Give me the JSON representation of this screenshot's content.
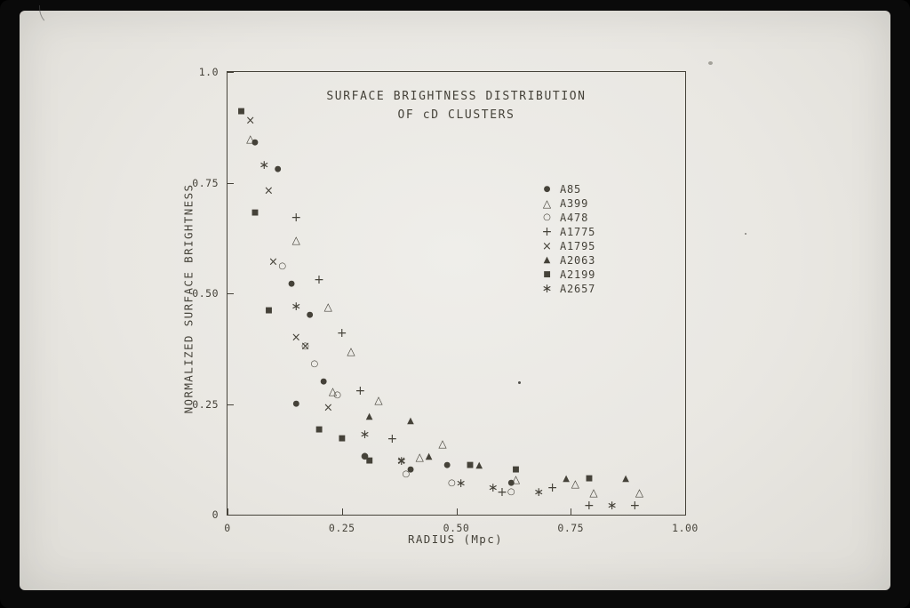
{
  "photo": {
    "frame_color": "#0a0a0a",
    "surface_color": "#e9e7e2",
    "ink_color": "#454239"
  },
  "chart": {
    "title_line1": "SURFACE BRIGHTNESS DISTRIBUTION",
    "title_line2": "OF cD CLUSTERS",
    "xlabel": "RADIUS (Mpc)",
    "ylabel": "NORMALIZED SURFACE BRIGHTNESS"
  },
  "chart_data": {
    "type": "scatter",
    "title": "SURFACE BRIGHTNESS DISTRIBUTION OF cD CLUSTERS",
    "xlabel": "RADIUS (Mpc)",
    "ylabel": "NORMALIZED SURFACE BRIGHTNESS",
    "xlim": [
      0,
      1.0
    ],
    "ylim": [
      0,
      1.0
    ],
    "grid": false,
    "legend_position": "inside-right",
    "x_ticks": [
      {
        "value": 0.0,
        "label": "0"
      },
      {
        "value": 0.25,
        "label": "0.25"
      },
      {
        "value": 0.5,
        "label": "0.50"
      },
      {
        "value": 0.75,
        "label": "0.75"
      },
      {
        "value": 1.0,
        "label": "1.00"
      }
    ],
    "y_ticks": [
      {
        "value": 0.0,
        "label": "0"
      },
      {
        "value": 0.25,
        "label": "0.25"
      },
      {
        "value": 0.5,
        "label": "0.50"
      },
      {
        "value": 0.75,
        "label": "0.75"
      },
      {
        "value": 1.0,
        "label": "1.0"
      }
    ],
    "series": [
      {
        "name": "A85",
        "marker": "filled-circle",
        "glyph": "●",
        "points": [
          [
            0.06,
            0.84
          ],
          [
            0.11,
            0.78
          ],
          [
            0.14,
            0.52
          ],
          [
            0.18,
            0.45
          ],
          [
            0.15,
            0.25
          ],
          [
            0.21,
            0.3
          ],
          [
            0.3,
            0.13
          ],
          [
            0.4,
            0.1
          ],
          [
            0.48,
            0.11
          ],
          [
            0.62,
            0.07
          ]
        ]
      },
      {
        "name": "A399",
        "marker": "open-triangle",
        "glyph": "△",
        "points": [
          [
            0.05,
            0.85
          ],
          [
            0.15,
            0.62
          ],
          [
            0.22,
            0.47
          ],
          [
            0.27,
            0.37
          ],
          [
            0.23,
            0.28
          ],
          [
            0.33,
            0.26
          ],
          [
            0.42,
            0.13
          ],
          [
            0.47,
            0.16
          ],
          [
            0.63,
            0.08
          ],
          [
            0.76,
            0.07
          ],
          [
            0.8,
            0.05
          ],
          [
            0.9,
            0.05
          ]
        ]
      },
      {
        "name": "A478",
        "marker": "open-circle",
        "glyph": "○",
        "points": [
          [
            0.12,
            0.56
          ],
          [
            0.17,
            0.38
          ],
          [
            0.19,
            0.34
          ],
          [
            0.24,
            0.27
          ],
          [
            0.3,
            0.13
          ],
          [
            0.39,
            0.09
          ],
          [
            0.49,
            0.07
          ],
          [
            0.62,
            0.05
          ]
        ]
      },
      {
        "name": "A1775",
        "marker": "plus",
        "glyph": "+",
        "points": [
          [
            0.15,
            0.67
          ],
          [
            0.2,
            0.53
          ],
          [
            0.25,
            0.41
          ],
          [
            0.29,
            0.28
          ],
          [
            0.36,
            0.17
          ],
          [
            0.6,
            0.05
          ],
          [
            0.71,
            0.06
          ],
          [
            0.79,
            0.02
          ],
          [
            0.89,
            0.02
          ]
        ]
      },
      {
        "name": "A1795",
        "marker": "x",
        "glyph": "×",
        "points": [
          [
            0.05,
            0.89
          ],
          [
            0.09,
            0.73
          ],
          [
            0.1,
            0.57
          ],
          [
            0.15,
            0.4
          ],
          [
            0.17,
            0.38
          ],
          [
            0.22,
            0.24
          ],
          [
            0.38,
            0.12
          ]
        ]
      },
      {
        "name": "A2063",
        "marker": "filled-triangle",
        "glyph": "▲",
        "points": [
          [
            0.31,
            0.22
          ],
          [
            0.4,
            0.21
          ],
          [
            0.44,
            0.13
          ],
          [
            0.55,
            0.11
          ],
          [
            0.74,
            0.08
          ],
          [
            0.87,
            0.08
          ]
        ]
      },
      {
        "name": "A2199",
        "marker": "filled-square",
        "glyph": "■",
        "points": [
          [
            0.03,
            0.91
          ],
          [
            0.06,
            0.68
          ],
          [
            0.09,
            0.46
          ],
          [
            0.2,
            0.19
          ],
          [
            0.25,
            0.17
          ],
          [
            0.31,
            0.12
          ],
          [
            0.53,
            0.11
          ],
          [
            0.63,
            0.1
          ],
          [
            0.79,
            0.08
          ]
        ]
      },
      {
        "name": "A2657",
        "marker": "asterisk",
        "glyph": "∗",
        "points": [
          [
            0.08,
            0.79
          ],
          [
            0.15,
            0.47
          ],
          [
            0.3,
            0.18
          ],
          [
            0.38,
            0.12
          ],
          [
            0.51,
            0.07
          ],
          [
            0.58,
            0.06
          ],
          [
            0.68,
            0.05
          ],
          [
            0.84,
            0.02
          ]
        ]
      }
    ]
  }
}
